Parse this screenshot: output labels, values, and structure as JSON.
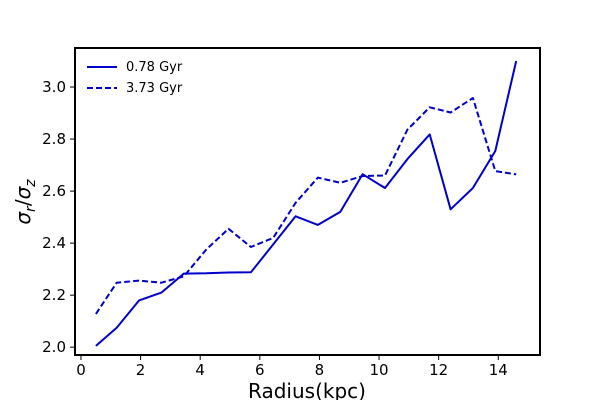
{
  "chart_data": {
    "type": "line",
    "xlabel": "Radius(kpc)",
    "ylabel_main": "σ",
    "ylabel_sub_r": "r",
    "ylabel_slash": "/",
    "ylabel_sub_z": "z",
    "xlim": [
      -0.2,
      15.4
    ],
    "ylim": [
      1.97,
      3.15
    ],
    "xticks": [
      0,
      2,
      4,
      6,
      8,
      10,
      12,
      14
    ],
    "yticks": [
      2.0,
      2.2,
      2.4,
      2.6,
      2.8,
      3.0
    ],
    "xtick_labels": [
      "0",
      "2",
      "4",
      "6",
      "8",
      "10",
      "12",
      "14"
    ],
    "ytick_labels": [
      "2.0",
      "2.2",
      "2.4",
      "2.6",
      "2.8",
      "3.0"
    ],
    "grid": false,
    "legend_position": "top-left",
    "line_color": "#0000cc",
    "series": [
      {
        "name": "0.78 Gyr",
        "style": "solid",
        "x": [
          0.5,
          1.2,
          1.95,
          2.7,
          3.45,
          4.2,
          4.95,
          5.7,
          6.45,
          7.2,
          7.95,
          8.7,
          9.45,
          10.2,
          10.95,
          11.7,
          12.4,
          13.15,
          13.9,
          14.6
        ],
        "y": [
          2.005,
          2.075,
          2.18,
          2.21,
          2.283,
          2.284,
          2.287,
          2.288,
          2.395,
          2.503,
          2.47,
          2.52,
          2.665,
          2.612,
          2.723,
          2.818,
          2.53,
          2.612,
          2.754,
          3.1
        ]
      },
      {
        "name": "3.73 Gyr",
        "style": "dashed",
        "x": [
          0.5,
          1.2,
          1.95,
          2.7,
          3.45,
          4.2,
          4.95,
          5.7,
          6.45,
          7.2,
          7.95,
          8.7,
          9.45,
          10.2,
          10.95,
          11.7,
          12.4,
          13.15,
          13.9,
          14.6
        ],
        "y": [
          2.128,
          2.248,
          2.256,
          2.248,
          2.272,
          2.375,
          2.455,
          2.385,
          2.42,
          2.555,
          2.652,
          2.632,
          2.658,
          2.66,
          2.836,
          2.922,
          2.902,
          2.958,
          2.677,
          2.664
        ]
      }
    ]
  }
}
